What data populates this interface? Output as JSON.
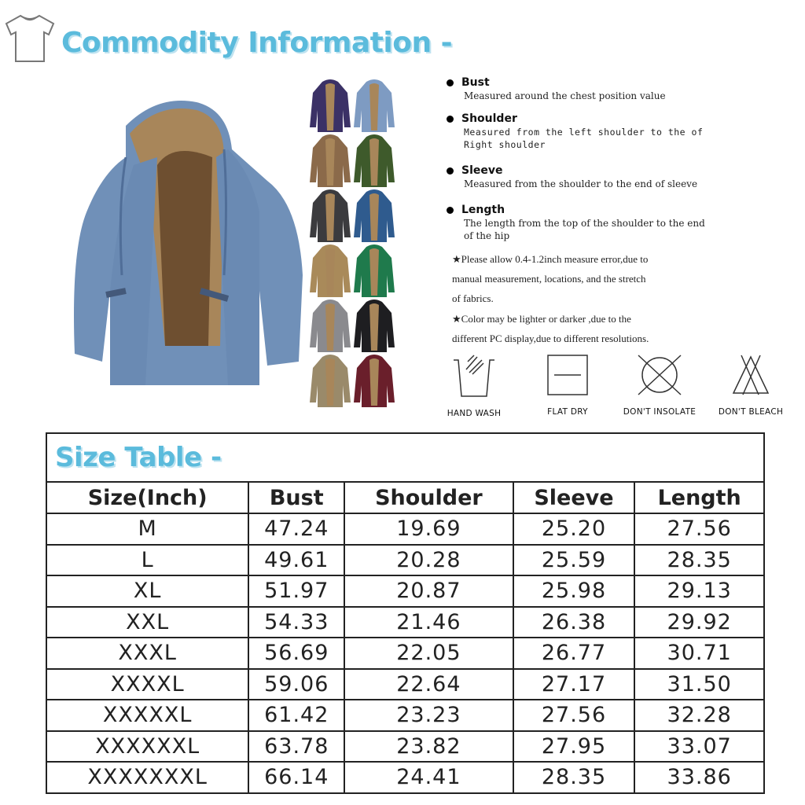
{
  "header": {
    "title": "Commodity Information -",
    "icon": "tshirt-icon"
  },
  "swatches": {
    "colors": [
      "#3b3166",
      "#7e9bc2",
      "#8b6a4a",
      "#3e5a2b",
      "#3b3b3e",
      "#2f5b8e",
      "#a98a5a",
      "#1f7a4c",
      "#8a8a8e",
      "#1e1e21",
      "#9a8a6a",
      "#6a1f2b"
    ]
  },
  "definitions": [
    {
      "term": "Bust",
      "text": "Measured around the chest position value"
    },
    {
      "term": "Shoulder",
      "text": "Measured from the left shoulder to the of Right shoulder"
    },
    {
      "term": "Sleeve",
      "text": "Measured from the shoulder to the end of sleeve"
    },
    {
      "term": "Length",
      "text": "The length from the top of the shoulder to the end of the hip"
    }
  ],
  "notes": [
    "★Please allow 0.4-1.2inch measure error,due to",
    "manual measurement, locations, and the stretch",
    "of fabrics.",
    "★Color may be lighter or darker ,due to the",
    "different PC display,due to different resolutions."
  ],
  "care": [
    {
      "label": "HAND WASH",
      "icon": "hand-wash-icon"
    },
    {
      "label": "FLAT  DRY",
      "icon": "flat-dry-icon"
    },
    {
      "label": "DON'T INSOLATE",
      "icon": "dont-insolate-icon"
    },
    {
      "label": "DON'T BLEACH",
      "icon": "dont-bleach-icon"
    }
  ],
  "size_table": {
    "title": "Size Table -",
    "headers": [
      "Size(Inch)",
      "Bust",
      "Shoulder",
      "Sleeve",
      "Length"
    ],
    "rows": [
      [
        "M",
        "47.24",
        "19.69",
        "25.20",
        "27.56"
      ],
      [
        "L",
        "49.61",
        "20.28",
        "25.59",
        "28.35"
      ],
      [
        "XL",
        "51.97",
        "20.87",
        "25.98",
        "29.13"
      ],
      [
        "XXL",
        "54.33",
        "21.46",
        "26.38",
        "29.92"
      ],
      [
        "XXXL",
        "56.69",
        "22.05",
        "26.77",
        "30.71"
      ],
      [
        "XXXXL",
        "59.06",
        "22.64",
        "27.17",
        "31.50"
      ],
      [
        "XXXXXL",
        "61.42",
        "23.23",
        "27.56",
        "32.28"
      ],
      [
        "XXXXXXL",
        "63.78",
        "23.82",
        "27.95",
        "33.07"
      ],
      [
        "XXXXXXXL",
        "66.14",
        "24.41",
        "28.35",
        "33.86"
      ]
    ]
  }
}
